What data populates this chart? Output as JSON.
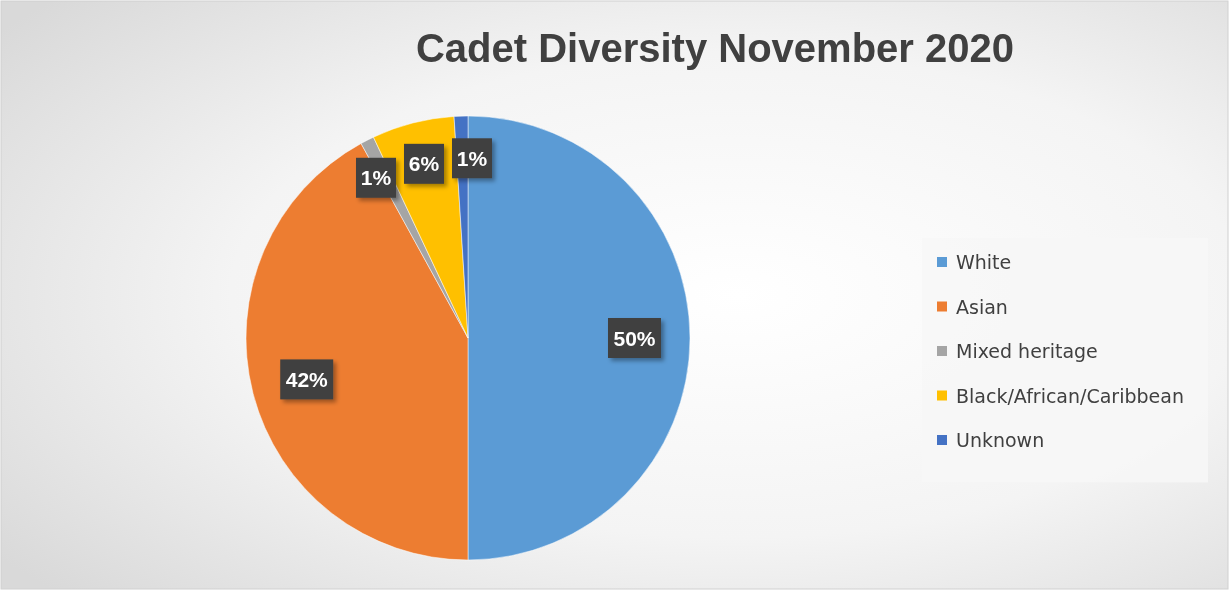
{
  "chart_data": {
    "type": "pie",
    "title": "Cadet Diversity November 2020",
    "categories": [
      "White",
      "Asian",
      "Mixed heritage",
      "Black/African/Caribbean",
      "Unknown"
    ],
    "values": [
      50,
      42,
      1,
      6,
      1
    ],
    "colors": [
      "#5b9bd5",
      "#ed7d31",
      "#a5a5a5",
      "#ffc000",
      "#4472c4"
    ],
    "value_labels": [
      "50%",
      "42%",
      "1%",
      "6%",
      "1%"
    ],
    "legend": "right"
  }
}
